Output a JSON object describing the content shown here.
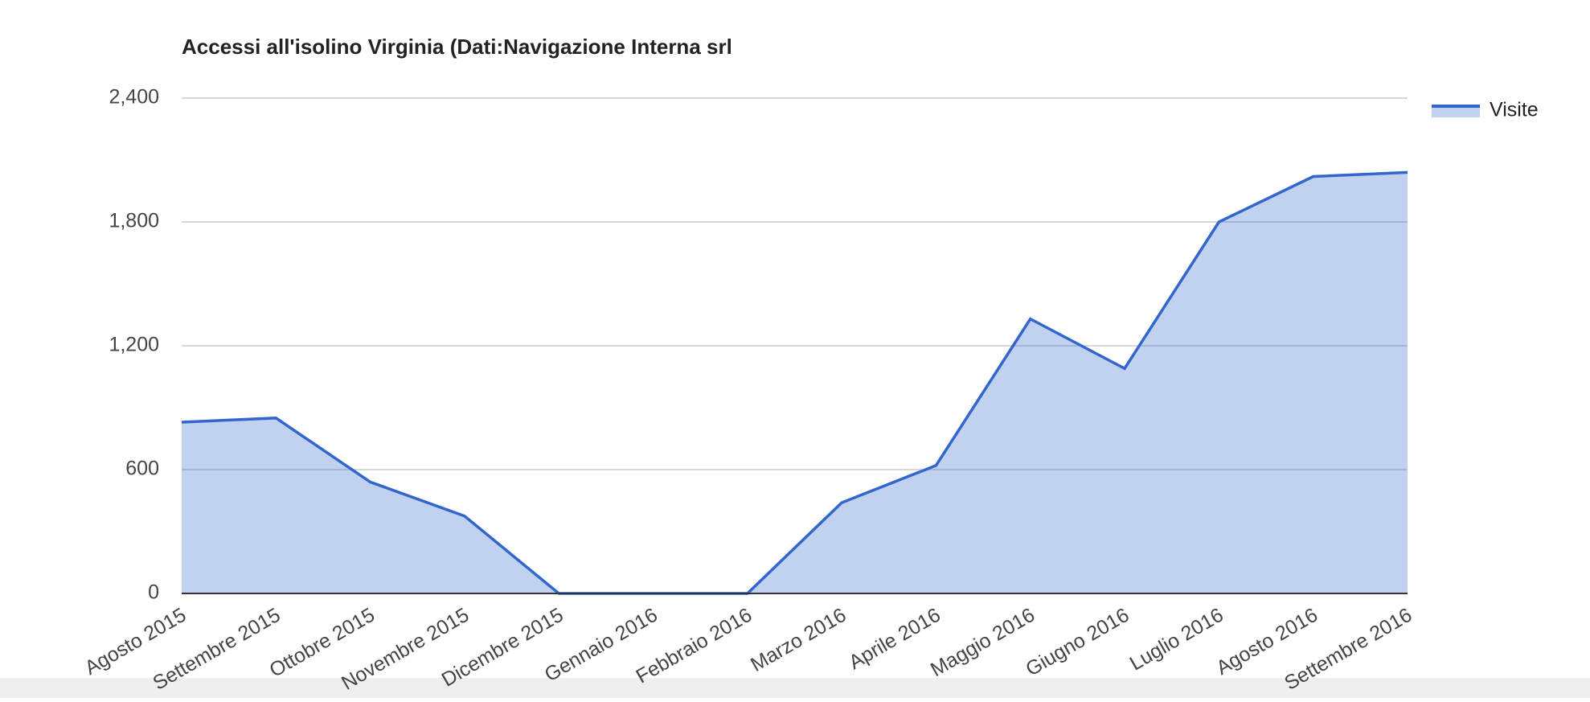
{
  "chart_data": {
    "type": "area",
    "title": "Accessi all'isolino Virginia (Dati:Navigazione Interna srl",
    "categories": [
      "Agosto 2015",
      "Settembre 2015",
      "Ottobre 2015",
      "Novembre 2015",
      "Dicembre 2015",
      "Gennaio 2016",
      "Febbraio 2016",
      "Marzo 2016",
      "Aprile 2016",
      "Maggio 2016",
      "Giugno 2016",
      "Luglio 2016",
      "Agosto 2016",
      "Settembre 2016"
    ],
    "series": [
      {
        "name": "Visite",
        "color": "#3366cc",
        "values": [
          830,
          850,
          540,
          375,
          0,
          0,
          0,
          440,
          620,
          1330,
          1090,
          1800,
          2020,
          2040
        ]
      }
    ],
    "ylim": [
      0,
      2400
    ],
    "yticks": [
      0,
      600,
      {
        "value": 1200,
        "label": "1,200"
      },
      {
        "value": 1800,
        "label": "1,800"
      },
      {
        "value": 2400,
        "label": "2,400"
      }
    ],
    "grid": true,
    "legend": "right"
  }
}
